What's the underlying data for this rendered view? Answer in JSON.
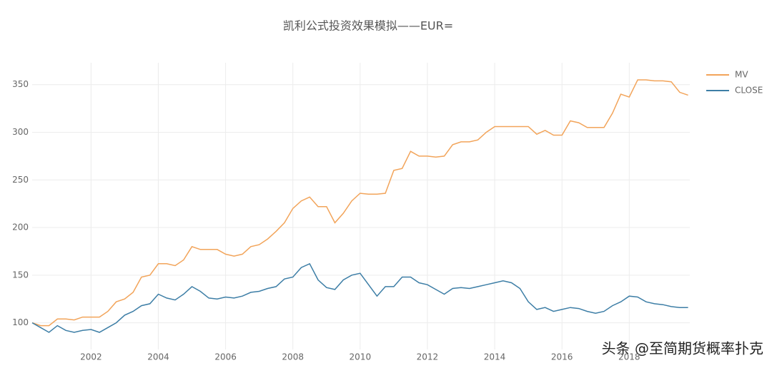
{
  "chart_data": {
    "type": "line",
    "title": "凯利公式投资效果模拟——EUR=",
    "annotation": "头条 @至简期货概率扑克",
    "x": [
      2000.25,
      2000.5,
      2000.75,
      2001,
      2001.25,
      2001.5,
      2001.75,
      2002,
      2002.25,
      2002.5,
      2002.75,
      2003,
      2003.25,
      2003.5,
      2003.75,
      2004,
      2004.25,
      2004.5,
      2004.75,
      2005,
      2005.25,
      2005.5,
      2005.75,
      2006,
      2006.25,
      2006.5,
      2006.75,
      2007,
      2007.25,
      2007.5,
      2007.75,
      2008,
      2008.25,
      2008.5,
      2008.75,
      2009,
      2009.25,
      2009.5,
      2009.75,
      2010,
      2010.25,
      2010.5,
      2010.75,
      2011,
      2011.25,
      2011.5,
      2011.75,
      2012,
      2012.25,
      2012.5,
      2012.75,
      2013,
      2013.25,
      2013.5,
      2013.75,
      2014,
      2014.25,
      2014.5,
      2014.75,
      2015,
      2015.25,
      2015.5,
      2015.75,
      2016,
      2016.25,
      2016.5,
      2016.75,
      2017,
      2017.25,
      2017.5,
      2017.75,
      2018,
      2018.25,
      2018.5,
      2018.75,
      2019,
      2019.25,
      2019.5,
      2019.75
    ],
    "series": [
      {
        "name": "MV",
        "color": "#f2a45a",
        "values": [
          100,
          97,
          97,
          104,
          104,
          103,
          106,
          106,
          106,
          112,
          122,
          125,
          132,
          148,
          150,
          162,
          162,
          160,
          166,
          180,
          177,
          177,
          177,
          172,
          170,
          172,
          180,
          182,
          188,
          196,
          205,
          220,
          228,
          232,
          222,
          222,
          205,
          215,
          228,
          236,
          235,
          235,
          236,
          260,
          262,
          280,
          275,
          275,
          274,
          275,
          287,
          290,
          290,
          292,
          300,
          306,
          306,
          306,
          306,
          306,
          298,
          302,
          297,
          297,
          312,
          310,
          305,
          305,
          305,
          320,
          340,
          337,
          355,
          355,
          354,
          354,
          353,
          342,
          339
        ]
      },
      {
        "name": "CLOSE",
        "color": "#3d7ea6",
        "values": [
          100,
          95,
          90,
          97,
          92,
          90,
          92,
          93,
          90,
          95,
          100,
          108,
          112,
          118,
          120,
          130,
          126,
          124,
          130,
          138,
          133,
          126,
          125,
          127,
          126,
          128,
          132,
          133,
          136,
          138,
          146,
          148,
          158,
          162,
          145,
          137,
          135,
          145,
          150,
          152,
          140,
          128,
          138,
          138,
          148,
          148,
          142,
          140,
          135,
          130,
          136,
          137,
          136,
          138,
          140,
          142,
          144,
          142,
          136,
          122,
          114,
          116,
          112,
          114,
          116,
          115,
          112,
          110,
          112,
          118,
          122,
          128,
          127,
          122,
          120,
          119,
          117,
          116,
          116
        ]
      }
    ],
    "xlim": [
      2000.25,
      2019.8
    ],
    "ylim": [
      72,
      373
    ],
    "xticks": [
      2002,
      2004,
      2006,
      2008,
      2010,
      2012,
      2014,
      2016,
      2018
    ],
    "yticks": [
      100,
      150,
      200,
      250,
      300,
      350
    ],
    "grid": true,
    "legend": "top-right"
  }
}
